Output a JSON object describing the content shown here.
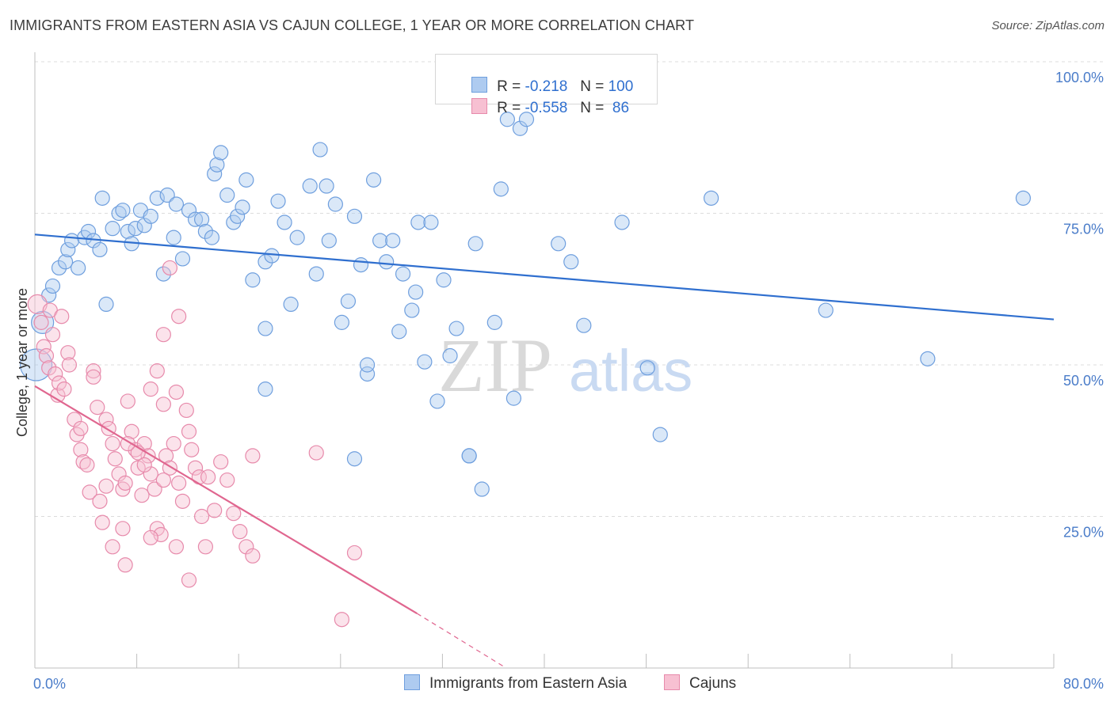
{
  "header": {
    "title": "IMMIGRANTS FROM EASTERN ASIA VS CAJUN COLLEGE, 1 YEAR OR MORE CORRELATION CHART",
    "source": "Source: ZipAtlas.com"
  },
  "watermark": {
    "zip": "ZIP",
    "atlas": "atlas"
  },
  "legend": {
    "rows": [
      {
        "r_label": "R = ",
        "r_value": "-0.218",
        "n_label": "N = ",
        "n_value": "100",
        "color": "#aecbf0",
        "border": "#6f9fde"
      },
      {
        "r_label": "R = ",
        "r_value": "-0.558",
        "n_label": "N = ",
        "n_value": " 86",
        "color": "#f7c0d2",
        "border": "#e78aab"
      }
    ]
  },
  "bottom_legend": [
    {
      "label": "Immigrants from Eastern Asia",
      "color": "#aecbf0",
      "border": "#6f9fde"
    },
    {
      "label": "Cajuns",
      "color": "#f7c0d2",
      "border": "#e78aab"
    }
  ],
  "chart_data": {
    "type": "scatter",
    "title": "IMMIGRANTS FROM EASTERN ASIA VS CAJUN COLLEGE, 1 YEAR OR MORE CORRELATION CHART",
    "xlabel": "",
    "ylabel": "College, 1 year or more",
    "xlim": [
      0,
      80
    ],
    "ylim": [
      0,
      100
    ],
    "x_tick_labels": [
      "0.0%",
      "80.0%"
    ],
    "y_tick_labels": [
      "100.0%",
      "75.0%",
      "50.0%",
      "25.0%"
    ],
    "y_ticks": [
      100,
      75,
      50,
      25
    ],
    "grid": true,
    "legend_position": "top-center",
    "series": [
      {
        "name": "Immigrants from Eastern Asia",
        "color": "#6f9fde",
        "trend": {
          "x": [
            0,
            80
          ],
          "y": [
            71.5,
            57.5
          ]
        },
        "points": [
          [
            0.1,
            50
          ],
          [
            0.6,
            57
          ],
          [
            1.1,
            61.5
          ],
          [
            1.4,
            63
          ],
          [
            1.9,
            66
          ],
          [
            2.4,
            67
          ],
          [
            2.6,
            69
          ],
          [
            2.9,
            70.5
          ],
          [
            3.4,
            66
          ],
          [
            3.9,
            71
          ],
          [
            4.2,
            72
          ],
          [
            4.6,
            70.5
          ],
          [
            5.1,
            69
          ],
          [
            5.3,
            77.5
          ],
          [
            5.6,
            60
          ],
          [
            6.1,
            72.5
          ],
          [
            6.6,
            75
          ],
          [
            6.9,
            75.5
          ],
          [
            7.3,
            72
          ],
          [
            7.6,
            70
          ],
          [
            7.9,
            72.5
          ],
          [
            8.3,
            75.5
          ],
          [
            8.6,
            73
          ],
          [
            9.1,
            74.5
          ],
          [
            9.6,
            77.5
          ],
          [
            10.1,
            65
          ],
          [
            10.4,
            78
          ],
          [
            10.9,
            71
          ],
          [
            11.1,
            76.5
          ],
          [
            11.6,
            67.5
          ],
          [
            12.1,
            75.5
          ],
          [
            12.6,
            74
          ],
          [
            13.1,
            74
          ],
          [
            13.4,
            72
          ],
          [
            13.9,
            71
          ],
          [
            14.1,
            81.5
          ],
          [
            14.3,
            83
          ],
          [
            14.6,
            85
          ],
          [
            15.1,
            78
          ],
          [
            15.6,
            73.5
          ],
          [
            15.9,
            74.5
          ],
          [
            16.3,
            76
          ],
          [
            16.6,
            80.5
          ],
          [
            17.1,
            64
          ],
          [
            18.1,
            67
          ],
          [
            18.6,
            68
          ],
          [
            19.1,
            77
          ],
          [
            19.6,
            73.5
          ],
          [
            20.1,
            60
          ],
          [
            20.6,
            71
          ],
          [
            21.6,
            79.5
          ],
          [
            22.1,
            65
          ],
          [
            22.4,
            85.5
          ],
          [
            22.9,
            79.5
          ],
          [
            23.1,
            70.5
          ],
          [
            23.6,
            76.5
          ],
          [
            24.1,
            57
          ],
          [
            24.6,
            60.5
          ],
          [
            25.1,
            74.5
          ],
          [
            25.6,
            66.5
          ],
          [
            26.1,
            48.5
          ],
          [
            26.6,
            80.5
          ],
          [
            27.1,
            70.5
          ],
          [
            27.6,
            67
          ],
          [
            28.1,
            70.5
          ],
          [
            28.6,
            55.5
          ],
          [
            28.9,
            65
          ],
          [
            29.6,
            59
          ],
          [
            29.9,
            62
          ],
          [
            30.1,
            73.5
          ],
          [
            30.6,
            50.5
          ],
          [
            31.1,
            73.5
          ],
          [
            31.6,
            44
          ],
          [
            32.1,
            64
          ],
          [
            32.6,
            51.5
          ],
          [
            33.1,
            56
          ],
          [
            34.1,
            35
          ],
          [
            34.6,
            70
          ],
          [
            36.1,
            57
          ],
          [
            36.6,
            79
          ],
          [
            37.1,
            90.5
          ],
          [
            37.6,
            44.5
          ],
          [
            38.1,
            89
          ],
          [
            38.6,
            90.5
          ],
          [
            41.1,
            70
          ],
          [
            42.1,
            67
          ],
          [
            43.1,
            56.5
          ],
          [
            46.1,
            73.5
          ],
          [
            48.1,
            49.5
          ],
          [
            49.1,
            38.5
          ],
          [
            53.1,
            77.5
          ],
          [
            62.1,
            59
          ],
          [
            70.1,
            51
          ],
          [
            77.6,
            77.5
          ],
          [
            18.1,
            46
          ],
          [
            26.1,
            50
          ],
          [
            34.1,
            35
          ],
          [
            35.1,
            29.5
          ],
          [
            25.1,
            34.5
          ],
          [
            18.1,
            56
          ]
        ]
      },
      {
        "name": "Cajuns",
        "color": "#e78aab",
        "trend": {
          "x": [
            0,
            30
          ],
          "y": [
            46.5,
            9
          ]
        },
        "trend_dashed": {
          "x": [
            30,
            37
          ],
          "y": [
            9,
            0
          ]
        },
        "points": [
          [
            0.2,
            60
          ],
          [
            0.5,
            57
          ],
          [
            0.7,
            53
          ],
          [
            0.9,
            51.5
          ],
          [
            1.1,
            49.5
          ],
          [
            1.2,
            59
          ],
          [
            1.4,
            55
          ],
          [
            1.6,
            48.5
          ],
          [
            1.8,
            45
          ],
          [
            1.9,
            47
          ],
          [
            2.1,
            58
          ],
          [
            2.3,
            46
          ],
          [
            2.6,
            52
          ],
          [
            2.7,
            50
          ],
          [
            3.1,
            41
          ],
          [
            3.3,
            38.5
          ],
          [
            3.6,
            36
          ],
          [
            3.8,
            34
          ],
          [
            4.1,
            33.5
          ],
          [
            4.3,
            29
          ],
          [
            4.6,
            49
          ],
          [
            4.9,
            43
          ],
          [
            5.1,
            27.5
          ],
          [
            5.3,
            24
          ],
          [
            5.6,
            41
          ],
          [
            5.8,
            39.5
          ],
          [
            6.1,
            37
          ],
          [
            6.3,
            34.5
          ],
          [
            6.6,
            32
          ],
          [
            6.9,
            29.5
          ],
          [
            7.1,
            30.5
          ],
          [
            7.3,
            44
          ],
          [
            7.6,
            39
          ],
          [
            7.9,
            36
          ],
          [
            8.1,
            33
          ],
          [
            8.4,
            28.5
          ],
          [
            8.6,
            37
          ],
          [
            8.9,
            35
          ],
          [
            9.1,
            32
          ],
          [
            9.4,
            29.5
          ],
          [
            9.6,
            23
          ],
          [
            9.9,
            22
          ],
          [
            10.1,
            43.5
          ],
          [
            10.3,
            35
          ],
          [
            10.6,
            33
          ],
          [
            10.9,
            37
          ],
          [
            11.1,
            45.5
          ],
          [
            11.3,
            30.5
          ],
          [
            11.6,
            27.5
          ],
          [
            11.9,
            42.5
          ],
          [
            12.1,
            39
          ],
          [
            12.3,
            36
          ],
          [
            12.6,
            33
          ],
          [
            12.9,
            31.5
          ],
          [
            13.1,
            25
          ],
          [
            13.4,
            20
          ],
          [
            14.1,
            26
          ],
          [
            14.6,
            34
          ],
          [
            15.1,
            31
          ],
          [
            15.6,
            25.5
          ],
          [
            16.1,
            22.5
          ],
          [
            16.6,
            20
          ],
          [
            17.1,
            18.5
          ],
          [
            6.1,
            20
          ],
          [
            7.1,
            17
          ],
          [
            9.1,
            21.5
          ],
          [
            11.1,
            20
          ],
          [
            12.1,
            14.5
          ],
          [
            9.6,
            49
          ],
          [
            11.3,
            58
          ],
          [
            10.1,
            55
          ],
          [
            9.1,
            46
          ],
          [
            10.6,
            66
          ],
          [
            4.6,
            48
          ],
          [
            3.6,
            39.5
          ],
          [
            5.6,
            30
          ],
          [
            6.9,
            23
          ],
          [
            8.1,
            35.5
          ],
          [
            7.3,
            37
          ],
          [
            8.6,
            33.5
          ],
          [
            13.6,
            31.5
          ],
          [
            10.1,
            31
          ],
          [
            17.1,
            35
          ],
          [
            22.1,
            35.5
          ],
          [
            25.1,
            19
          ],
          [
            24.1,
            8
          ]
        ]
      }
    ]
  }
}
